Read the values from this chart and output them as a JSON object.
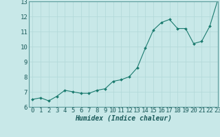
{
  "x": [
    0,
    1,
    2,
    3,
    4,
    5,
    6,
    7,
    8,
    9,
    10,
    11,
    12,
    13,
    14,
    15,
    16,
    17,
    18,
    19,
    20,
    21,
    22,
    23
  ],
  "y": [
    6.5,
    6.6,
    6.4,
    6.7,
    7.1,
    7.0,
    6.9,
    6.9,
    7.1,
    7.2,
    7.7,
    7.8,
    8.0,
    8.6,
    9.9,
    11.1,
    11.6,
    11.8,
    11.2,
    11.2,
    10.2,
    10.35,
    11.35,
    13.1
  ],
  "line_color": "#1a7a6e",
  "marker_color": "#1a7a6e",
  "bg_color": "#c8e8e8",
  "grid_color": "#b0d8d8",
  "xlabel": "Humidex (Indice chaleur)",
  "ylim": [
    6,
    13
  ],
  "xlim": [
    -0.5,
    23
  ],
  "yticks": [
    6,
    7,
    8,
    9,
    10,
    11,
    12,
    13
  ],
  "xticks": [
    0,
    1,
    2,
    3,
    4,
    5,
    6,
    7,
    8,
    9,
    10,
    11,
    12,
    13,
    14,
    15,
    16,
    17,
    18,
    19,
    20,
    21,
    22,
    23
  ],
  "xlabel_fontsize": 7,
  "tick_fontsize": 6.5
}
